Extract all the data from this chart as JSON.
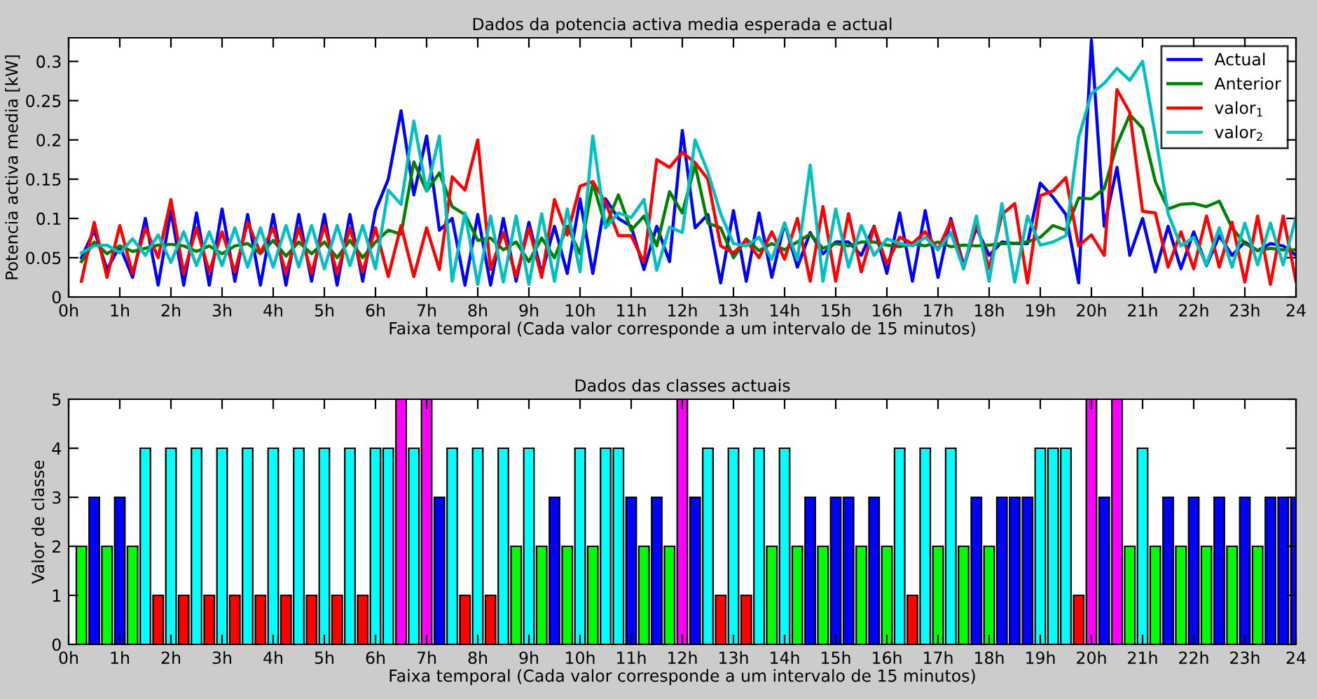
{
  "chart_data": [
    {
      "type": "line",
      "title": "Dados da potencia activa media esperada e actual",
      "xlabel": "Faixa temporal (Cada valor corresponde a um intervalo de 15 minutos)",
      "ylabel": "Potencia activa media [kW]",
      "x": [
        0.25,
        0.5,
        0.75,
        1,
        1.25,
        1.5,
        1.75,
        2,
        2.25,
        2.5,
        2.75,
        3,
        3.25,
        3.5,
        3.75,
        4,
        4.25,
        4.5,
        4.75,
        5,
        5.25,
        5.5,
        5.75,
        6,
        6.25,
        6.5,
        6.75,
        7,
        7.25,
        7.5,
        7.75,
        8,
        8.25,
        8.5,
        8.75,
        9,
        9.25,
        9.5,
        9.75,
        10,
        10.25,
        10.5,
        10.75,
        11,
        11.25,
        11.5,
        11.75,
        12,
        12.25,
        12.5,
        12.75,
        13,
        13.25,
        13.5,
        13.75,
        14,
        14.25,
        14.5,
        14.75,
        15,
        15.25,
        15.5,
        15.75,
        16,
        16.25,
        16.5,
        16.75,
        17,
        17.25,
        17.5,
        17.75,
        18,
        18.25,
        18.5,
        18.75,
        19,
        19.25,
        19.5,
        19.75,
        20,
        20.25,
        20.5,
        20.75,
        21,
        21.25,
        21.5,
        21.75,
        22,
        22.25,
        22.5,
        22.75,
        23,
        23.25,
        23.5,
        23.75,
        24
      ],
      "series": [
        {
          "name": "Actual",
          "color": "#0000ff",
          "values": [
            0.05,
            0.085,
            0.035,
            0.065,
            0.025,
            0.1,
            0.015,
            0.11,
            0.015,
            0.107,
            0.015,
            0.112,
            0.02,
            0.105,
            0.015,
            0.105,
            0.015,
            0.105,
            0.02,
            0.105,
            0.015,
            0.105,
            0.02,
            0.11,
            0.15,
            0.237,
            0.13,
            0.205,
            0.085,
            0.1,
            0.015,
            0.105,
            0.015,
            0.1,
            0.02,
            0.095,
            0.03,
            0.09,
            0.03,
            0.125,
            0.03,
            0.125,
            0.1,
            0.09,
            0.035,
            0.09,
            0.045,
            0.212,
            0.088,
            0.105,
            0.018,
            0.11,
            0.02,
            0.107,
            0.025,
            0.094,
            0.038,
            0.082,
            0.055,
            0.07,
            0.07,
            0.053,
            0.09,
            0.03,
            0.107,
            0.02,
            0.11,
            0.025,
            0.1,
            0.04,
            0.088,
            0.053,
            0.07,
            0.068,
            0.068,
            0.145,
            0.127,
            0.105,
            0.018,
            0.327,
            0.09,
            0.165,
            0.053,
            0.1,
            0.032,
            0.09,
            0.036,
            0.083,
            0.04,
            0.078,
            0.053,
            0.07,
            0.059,
            0.068,
            0.065,
            0.053
          ]
        },
        {
          "name": "Anterior",
          "color": "#008000",
          "values": [
            0.045,
            0.07,
            0.055,
            0.065,
            0.058,
            0.062,
            0.066,
            0.067,
            0.065,
            0.058,
            0.065,
            0.055,
            0.065,
            0.068,
            0.055,
            0.072,
            0.052,
            0.07,
            0.055,
            0.07,
            0.05,
            0.072,
            0.05,
            0.07,
            0.085,
            0.08,
            0.172,
            0.135,
            0.158,
            0.115,
            0.105,
            0.072,
            0.075,
            0.06,
            0.07,
            0.045,
            0.075,
            0.05,
            0.09,
            0.055,
            0.145,
            0.09,
            0.13,
            0.085,
            0.103,
            0.065,
            0.134,
            0.107,
            0.168,
            0.094,
            0.088,
            0.05,
            0.074,
            0.059,
            0.068,
            0.06,
            0.07,
            0.08,
            0.062,
            0.068,
            0.065,
            0.07,
            0.07,
            0.066,
            0.064,
            0.068,
            0.065,
            0.07,
            0.064,
            0.066,
            0.065,
            0.066,
            0.068,
            0.068,
            0.07,
            0.076,
            0.091,
            0.085,
            0.126,
            0.125,
            0.138,
            0.194,
            0.232,
            0.215,
            0.147,
            0.112,
            0.118,
            0.119,
            0.115,
            0.122,
            0.088,
            0.068,
            0.059,
            0.062,
            0.06,
            0.06
          ]
        },
        {
          "name": "valor$_{1}$",
          "color": "#ff0000",
          "values": [
            0.02,
            0.095,
            0.025,
            0.091,
            0.03,
            0.088,
            0.05,
            0.124,
            0.03,
            0.088,
            0.032,
            0.083,
            0.032,
            0.095,
            0.056,
            0.088,
            0.03,
            0.088,
            0.03,
            0.091,
            0.03,
            0.088,
            0.032,
            0.088,
            0.026,
            0.091,
            0.026,
            0.088,
            0.035,
            0.153,
            0.136,
            0.2,
            0.035,
            0.082,
            0.026,
            0.088,
            0.025,
            0.124,
            0.079,
            0.141,
            0.147,
            0.12,
            0.078,
            0.078,
            0.044,
            0.175,
            0.165,
            0.184,
            0.171,
            0.15,
            0.065,
            0.056,
            0.072,
            0.05,
            0.083,
            0.048,
            0.1,
            0.02,
            0.115,
            0.02,
            0.106,
            0.032,
            0.089,
            0.042,
            0.076,
            0.068,
            0.083,
            0.06,
            0.097,
            0.036,
            0.094,
            0.036,
            0.105,
            0.119,
            0.018,
            0.129,
            0.135,
            0.152,
            0.065,
            0.079,
            0.053,
            0.264,
            0.235,
            0.109,
            0.107,
            0.038,
            0.083,
            0.036,
            0.103,
            0.038,
            0.095,
            0.019,
            0.103,
            0.016,
            0.103,
            0.02
          ]
        },
        {
          "name": "valor$_{2}$",
          "color": "#00bfbf",
          "values": [
            0.056,
            0.065,
            0.066,
            0.056,
            0.074,
            0.053,
            0.079,
            0.044,
            0.083,
            0.04,
            0.083,
            0.04,
            0.088,
            0.038,
            0.088,
            0.038,
            0.091,
            0.038,
            0.091,
            0.036,
            0.091,
            0.04,
            0.091,
            0.036,
            0.136,
            0.118,
            0.224,
            0.135,
            0.205,
            0.02,
            0.107,
            0.016,
            0.103,
            0.019,
            0.103,
            0.016,
            0.106,
            0.02,
            0.112,
            0.032,
            0.205,
            0.088,
            0.107,
            0.101,
            0.124,
            0.034,
            0.089,
            0.082,
            0.2,
            0.159,
            0.106,
            0.068,
            0.065,
            0.076,
            0.048,
            0.094,
            0.047,
            0.168,
            0.02,
            0.112,
            0.038,
            0.091,
            0.053,
            0.074,
            0.068,
            0.065,
            0.076,
            0.06,
            0.082,
            0.036,
            0.103,
            0.02,
            0.119,
            0.019,
            0.103,
            0.066,
            0.07,
            0.078,
            0.203,
            0.259,
            0.272,
            0.291,
            0.276,
            0.3,
            0.206,
            0.106,
            0.065,
            0.076,
            0.041,
            0.088,
            0.038,
            0.094,
            0.041,
            0.094,
            0.041,
            0.101
          ]
        }
      ],
      "xlim": [
        0,
        24
      ],
      "xticks": [
        {
          "value": 0,
          "label": "0h"
        },
        {
          "value": 1,
          "label": "1h"
        },
        {
          "value": 2,
          "label": "2h"
        },
        {
          "value": 3,
          "label": "3h"
        },
        {
          "value": 4,
          "label": "4h"
        },
        {
          "value": 5,
          "label": "5h"
        },
        {
          "value": 6,
          "label": "6h"
        },
        {
          "value": 7,
          "label": "7h"
        },
        {
          "value": 8,
          "label": "8h"
        },
        {
          "value": 9,
          "label": "9h"
        },
        {
          "value": 10,
          "label": "10h"
        },
        {
          "value": 11,
          "label": "11h"
        },
        {
          "value": 12,
          "label": "12h"
        },
        {
          "value": 13,
          "label": "13h"
        },
        {
          "value": 14,
          "label": "14h"
        },
        {
          "value": 15,
          "label": "15h"
        },
        {
          "value": 16,
          "label": "16h"
        },
        {
          "value": 17,
          "label": "17h"
        },
        {
          "value": 18,
          "label": "18h"
        },
        {
          "value": 19,
          "label": "19h"
        },
        {
          "value": 20,
          "label": "20h"
        },
        {
          "value": 21,
          "label": "21h"
        },
        {
          "value": 22,
          "label": "22h"
        },
        {
          "value": 23,
          "label": "23h"
        },
        {
          "value": 24,
          "label": "24"
        }
      ],
      "ylim": [
        0,
        0.33
      ],
      "yticks": [
        0,
        0.05,
        0.1,
        0.15,
        0.2,
        0.25,
        0.3
      ],
      "legend": "top right",
      "grid": false,
      "line_style": "solid"
    },
    {
      "type": "bar",
      "title": "Dados das classes actuais",
      "xlabel": "Faixa temporal (Cada valor corresponde a um intervalo de 15 minutos)",
      "ylabel": "Valor de classe",
      "x": [
        0.25,
        0.5,
        0.75,
        1,
        1.25,
        1.5,
        1.75,
        2,
        2.25,
        2.5,
        2.75,
        3,
        3.25,
        3.5,
        3.75,
        4,
        4.25,
        4.5,
        4.75,
        5,
        5.25,
        5.5,
        5.75,
        6,
        6.25,
        6.5,
        6.75,
        7,
        7.25,
        7.5,
        7.75,
        8,
        8.25,
        8.5,
        8.75,
        9,
        9.25,
        9.5,
        9.75,
        10,
        10.25,
        10.5,
        10.75,
        11,
        11.25,
        11.5,
        11.75,
        12,
        12.25,
        12.5,
        12.75,
        13,
        13.25,
        13.5,
        13.75,
        14,
        14.25,
        14.5,
        14.75,
        15,
        15.25,
        15.5,
        15.75,
        16,
        16.25,
        16.5,
        16.75,
        17,
        17.25,
        17.5,
        17.75,
        18,
        18.25,
        18.5,
        18.75,
        19,
        19.25,
        19.5,
        19.75,
        20,
        20.25,
        20.5,
        20.75,
        21,
        21.25,
        21.5,
        21.75,
        22,
        22.25,
        22.5,
        22.75,
        23,
        23.25,
        23.5,
        23.75,
        24
      ],
      "values": [
        2,
        3,
        2,
        3,
        2,
        4,
        1,
        4,
        1,
        4,
        1,
        4,
        1,
        4,
        1,
        4,
        1,
        4,
        1,
        4,
        1,
        4,
        1,
        4,
        4,
        5,
        4,
        5,
        3,
        4,
        1,
        4,
        1,
        4,
        2,
        4,
        2,
        3,
        2,
        4,
        2,
        4,
        4,
        3,
        2,
        3,
        2,
        5,
        3,
        4,
        1,
        4,
        1,
        4,
        2,
        4,
        2,
        3,
        2,
        3,
        3,
        2,
        3,
        2,
        4,
        1,
        4,
        2,
        4,
        2,
        3,
        2,
        3,
        3,
        3,
        4,
        4,
        4,
        1,
        5,
        3,
        5,
        2,
        4,
        2,
        3,
        2,
        3,
        2,
        3,
        2,
        3,
        2,
        3,
        3,
        3
      ],
      "colors": [
        "#00ff00",
        "#0000ff",
        "#00ff00",
        "#0000ff",
        "#00ff00",
        "#00ffff",
        "#ff0000",
        "#00ffff",
        "#ff0000",
        "#00ffff",
        "#ff0000",
        "#00ffff",
        "#ff0000",
        "#00ffff",
        "#ff0000",
        "#00ffff",
        "#ff0000",
        "#00ffff",
        "#ff0000",
        "#00ffff",
        "#ff0000",
        "#00ffff",
        "#ff0000",
        "#00ffff",
        "#00ffff",
        "#ff00ff",
        "#00ffff",
        "#ff00ff",
        "#0000ff",
        "#00ffff",
        "#ff0000",
        "#00ffff",
        "#ff0000",
        "#00ffff",
        "#00ff00",
        "#00ffff",
        "#00ff00",
        "#0000ff",
        "#00ff00",
        "#00ffff",
        "#00ff00",
        "#00ffff",
        "#00ffff",
        "#0000ff",
        "#00ff00",
        "#0000ff",
        "#00ff00",
        "#ff00ff",
        "#0000ff",
        "#00ffff",
        "#ff0000",
        "#00ffff",
        "#ff0000",
        "#00ffff",
        "#00ff00",
        "#00ffff",
        "#00ff00",
        "#0000ff",
        "#00ff00",
        "#0000ff",
        "#0000ff",
        "#00ff00",
        "#0000ff",
        "#00ff00",
        "#00ffff",
        "#ff0000",
        "#00ffff",
        "#00ff00",
        "#00ffff",
        "#00ff00",
        "#0000ff",
        "#00ff00",
        "#0000ff",
        "#0000ff",
        "#0000ff",
        "#00ffff",
        "#00ffff",
        "#00ffff",
        "#ff0000",
        "#ff00ff",
        "#0000ff",
        "#ff00ff",
        "#00ff00",
        "#00ffff",
        "#00ff00",
        "#0000ff",
        "#00ff00",
        "#0000ff",
        "#00ff00",
        "#0000ff",
        "#00ff00",
        "#0000ff",
        "#00ff00",
        "#0000ff",
        "#0000ff",
        "#0000ff"
      ],
      "xlim": [
        0,
        24
      ],
      "xticks": [
        {
          "value": 0,
          "label": "0h"
        },
        {
          "value": 1,
          "label": "1h"
        },
        {
          "value": 2,
          "label": "2h"
        },
        {
          "value": 3,
          "label": "3h"
        },
        {
          "value": 4,
          "label": "4h"
        },
        {
          "value": 5,
          "label": "5h"
        },
        {
          "value": 6,
          "label": "6h"
        },
        {
          "value": 7,
          "label": "7h"
        },
        {
          "value": 8,
          "label": "8h"
        },
        {
          "value": 9,
          "label": "9h"
        },
        {
          "value": 10,
          "label": "10h"
        },
        {
          "value": 11,
          "label": "11h"
        },
        {
          "value": 12,
          "label": "12h"
        },
        {
          "value": 13,
          "label": "13h"
        },
        {
          "value": 14,
          "label": "14h"
        },
        {
          "value": 15,
          "label": "15h"
        },
        {
          "value": 16,
          "label": "16h"
        },
        {
          "value": 17,
          "label": "17h"
        },
        {
          "value": 18,
          "label": "18h"
        },
        {
          "value": 19,
          "label": "19h"
        },
        {
          "value": 20,
          "label": "20h"
        },
        {
          "value": 21,
          "label": "21h"
        },
        {
          "value": 22,
          "label": "22h"
        },
        {
          "value": 23,
          "label": "23h"
        },
        {
          "value": 24,
          "label": "24"
        }
      ],
      "ylim": [
        0,
        5
      ],
      "yticks": [
        0,
        1,
        2,
        3,
        4,
        5
      ],
      "grid": false
    }
  ]
}
